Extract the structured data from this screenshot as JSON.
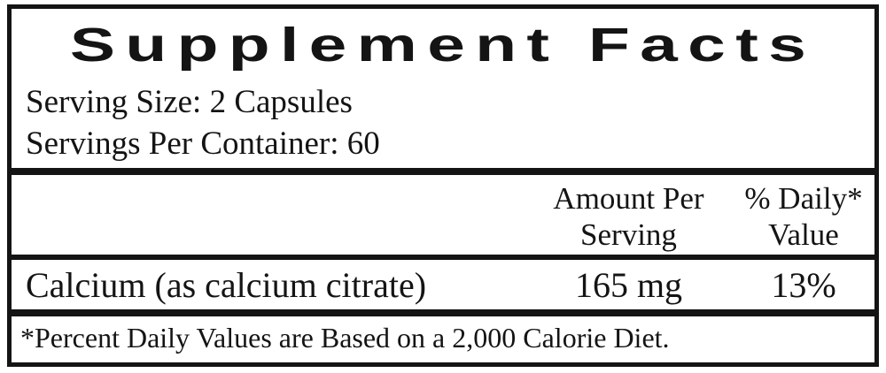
{
  "label": {
    "title": "Supplement Facts",
    "serving": {
      "size_line": "Serving Size: 2 Capsules",
      "per_container_line": "Servings Per Container: 60"
    },
    "column_headers": {
      "amount_line1": "Amount Per",
      "amount_line2": "Serving",
      "daily_value_line1": "% Daily*",
      "daily_value_line2": "Value"
    },
    "rows": [
      {
        "nutrient": "Calcium (as calcium citrate)",
        "amount": "165 mg",
        "daily_value": "13%"
      }
    ],
    "footnote": "*Percent Daily Values are Based on a 2,000 Calorie Diet.",
    "colors": {
      "text": "#141414",
      "border": "#141414",
      "background": "#ffffff"
    }
  }
}
